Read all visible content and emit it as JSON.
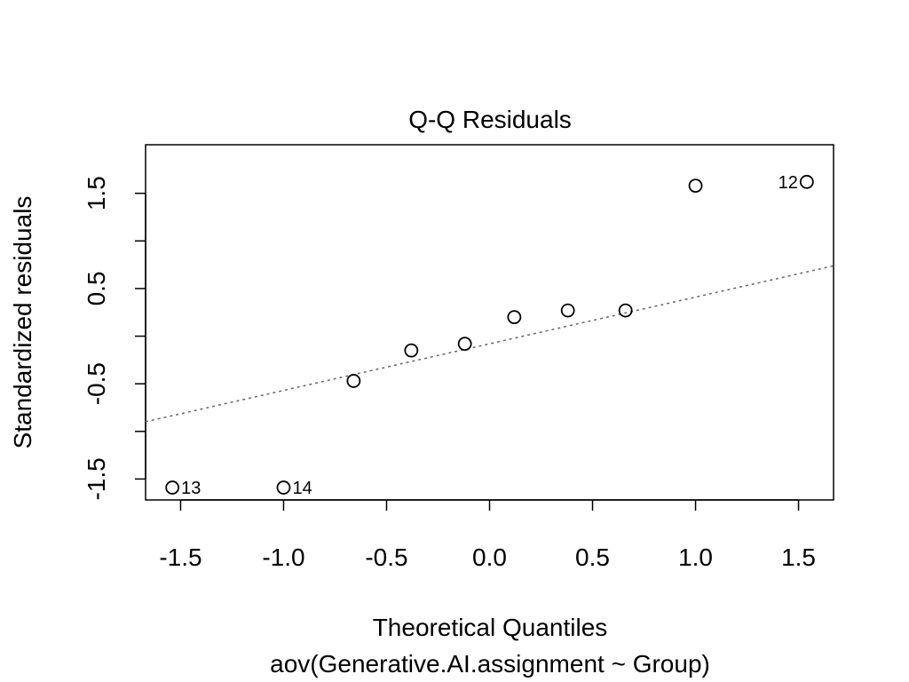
{
  "chart_data": {
    "type": "scatter",
    "title": "Q-Q Residuals",
    "xlabel": "Theoretical Quantiles",
    "subtitle": "aov(Generative.AI.assignment ~ Group)",
    "ylabel": "Standardized residuals",
    "xlim": [
      -1.67,
      1.67
    ],
    "ylim": [
      -1.72,
      2.01
    ],
    "x_ticks": [
      -1.5,
      -1.0,
      -0.5,
      0.0,
      0.5,
      1.0,
      1.5
    ],
    "x_tick_labels": [
      "-1.5",
      "-1.0",
      "-0.5",
      "0.0",
      "0.5",
      "1.0",
      "1.5"
    ],
    "y_ticks": [
      -1.5,
      -1.0,
      -0.5,
      0.0,
      0.5,
      1.0,
      1.5
    ],
    "y_tick_labels": [
      "-1.5",
      "",
      "-0.5",
      "",
      "0.5",
      "",
      "1.5"
    ],
    "points": [
      {
        "x": -1.54,
        "y": -1.59,
        "label": "13"
      },
      {
        "x": -1.0,
        "y": -1.59,
        "label": "14"
      },
      {
        "x": -0.66,
        "y": -0.47,
        "label": ""
      },
      {
        "x": -0.38,
        "y": -0.15,
        "label": ""
      },
      {
        "x": -0.12,
        "y": -0.08,
        "label": ""
      },
      {
        "x": 0.12,
        "y": 0.2,
        "label": ""
      },
      {
        "x": 0.38,
        "y": 0.27,
        "label": ""
      },
      {
        "x": 0.66,
        "y": 0.27,
        "label": ""
      },
      {
        "x": 1.0,
        "y": 1.58,
        "label": ""
      },
      {
        "x": 1.54,
        "y": 1.62,
        "label": "12"
      }
    ],
    "reference_line": {
      "intercept": -0.08,
      "slope": 0.49,
      "style": "dotted",
      "color": "#666666"
    }
  }
}
